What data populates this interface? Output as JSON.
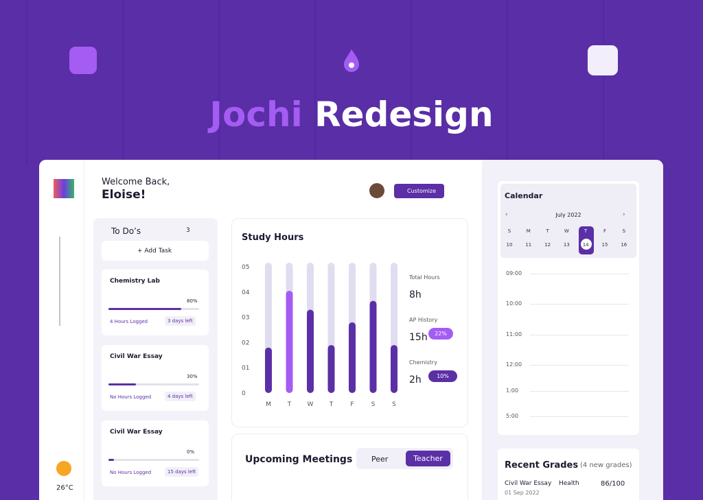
{
  "hero": {
    "title_accent": "Jochi",
    "title_rest": "Redesign"
  },
  "header": {
    "greeting": "Welcome Back,",
    "name": "Eloise!",
    "button": "Customize"
  },
  "todos": {
    "title": "To Do’s",
    "count": "3",
    "add": "Add Task",
    "items": [
      {
        "title": "Chemistry Lab",
        "progress": 80,
        "progress_label": "80%",
        "logged": "4 Hours Logged",
        "due": "3 days left"
      },
      {
        "title": "Civil War Essay",
        "progress": 30,
        "progress_label": "30%",
        "logged": "No Hours Logged",
        "due": "4 days left"
      },
      {
        "title": "Civil War Essay",
        "progress": 0,
        "progress_label": "0%",
        "logged": "No Hours Logged",
        "due": "15 days left"
      }
    ]
  },
  "chart_data": {
    "type": "bar",
    "title": "Study Hours",
    "categories": [
      "M",
      "T",
      "W",
      "T",
      "F",
      "S",
      "S"
    ],
    "values": [
      1.8,
      4.05,
      3.3,
      1.9,
      2.8,
      3.65,
      1.9
    ],
    "colors": [
      "#5b2fa6",
      "#a45cf2",
      "#5b2fa6",
      "#5b2fa6",
      "#5b2fa6",
      "#5b2fa6",
      "#5b2fa6"
    ],
    "track_color": "#e1ddf0",
    "ylim": [
      0,
      5
    ],
    "yticks": [
      0,
      {
        "value": 1,
        "label": "01"
      },
      {
        "value": 2,
        "label": "02"
      },
      {
        "value": 3,
        "label": "03"
      },
      {
        "value": 4,
        "label": "04"
      },
      {
        "value": 5,
        "label": "05"
      }
    ]
  },
  "stats": [
    {
      "label": "Total Hours",
      "value": "8h"
    },
    {
      "label": "AP History",
      "value": "15h",
      "badge": "22%"
    },
    {
      "label": "Chemistry",
      "value": "2h",
      "badge": "10%"
    }
  ],
  "meetings": {
    "title": "Upcoming Meetings",
    "tabs": [
      "Peer",
      "Teacher"
    ]
  },
  "calendar": {
    "title": "Calendar",
    "month": "July 2022",
    "weekdays": [
      "S",
      "M",
      "T",
      "W",
      "T",
      "F",
      "S"
    ],
    "dates": [
      10,
      11,
      12,
      13,
      14,
      15,
      16
    ],
    "times": [
      "09:00",
      "10:00",
      "11:00",
      "12:00",
      "1:00",
      "5:00"
    ]
  },
  "grades": {
    "title": "Recent Grades",
    "note": "(4 new grades)",
    "rows": [
      {
        "name": "Civil War Essay",
        "subject": "Health",
        "score": "86/100",
        "date": "01 Sep 2022"
      }
    ]
  },
  "weather": {
    "temp": "26°C"
  }
}
